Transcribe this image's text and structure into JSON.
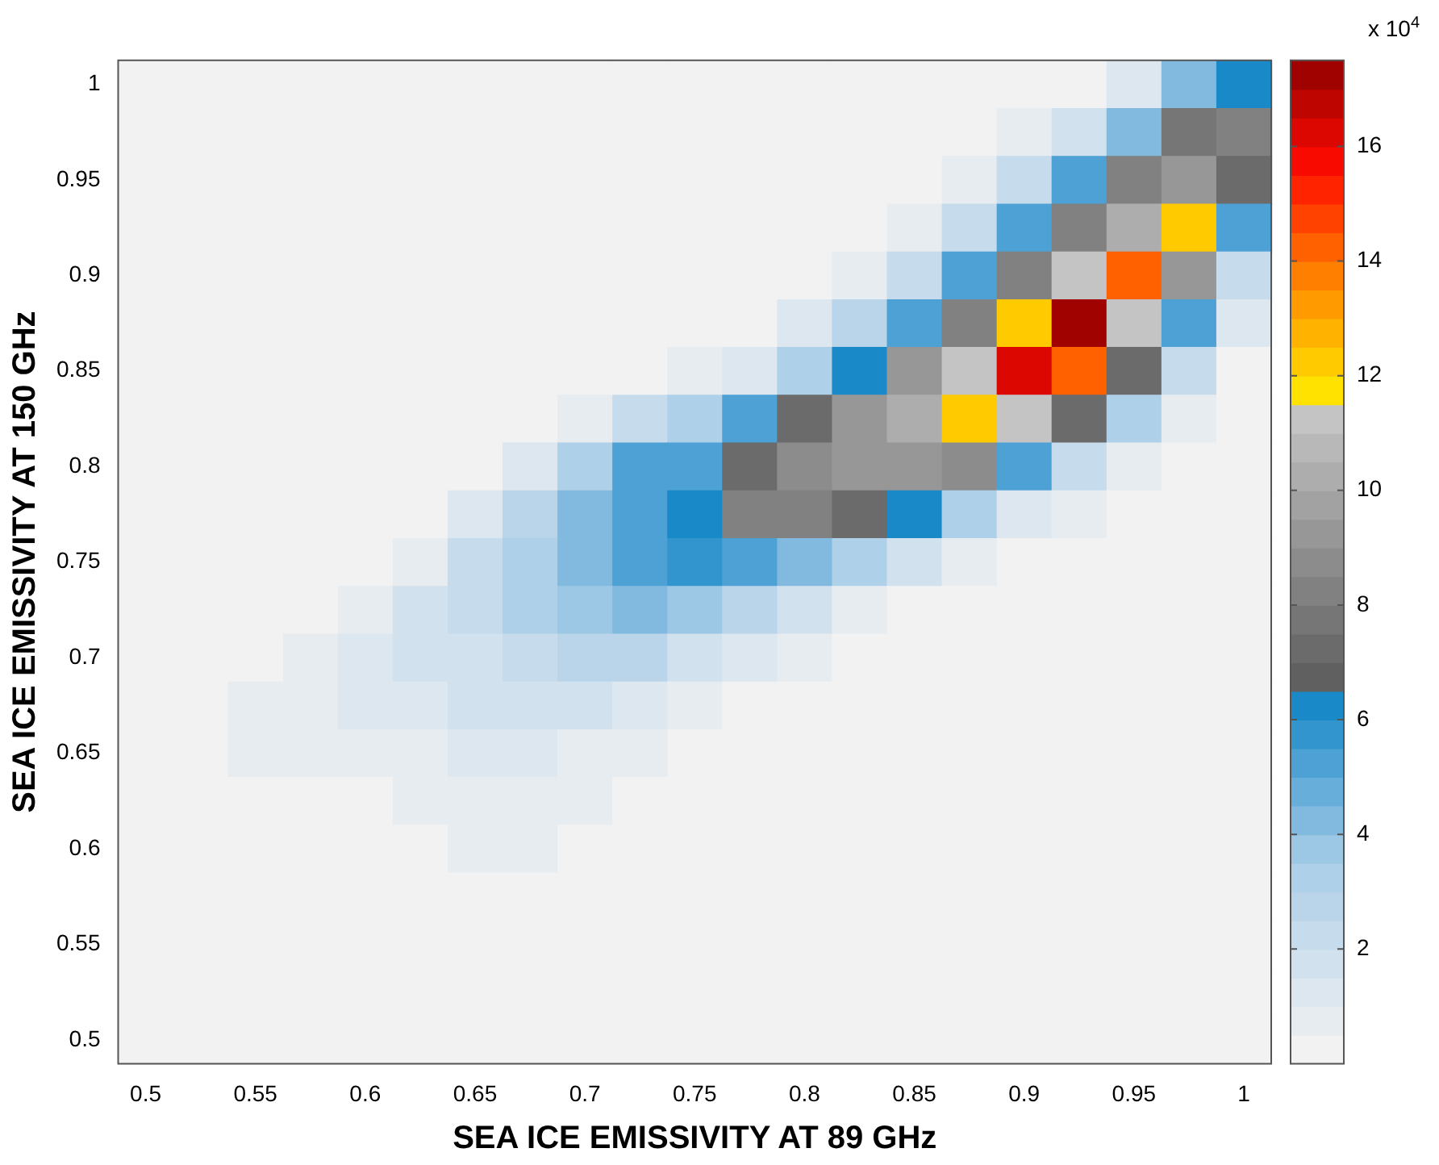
{
  "chart_data": {
    "type": "heatmap",
    "xlabel": "SEA ICE EMISSIVITY AT 89 GHz",
    "ylabel": "SEA ICE EMISSIVITY AT 150 GHz",
    "clabel": "x 10$^{4}$",
    "clim": [
      0,
      17.5
    ],
    "cticks": [
      2,
      4,
      6,
      8,
      10,
      12,
      14,
      16
    ],
    "categories": [
      "0.5",
      null,
      "0.55",
      null,
      "0.6",
      null,
      "0.65",
      null,
      "0.7",
      null,
      "0.75",
      null,
      "0.8",
      null,
      "0.85",
      null,
      "0.9",
      null,
      "0.95",
      null,
      "1"
    ],
    "y_categories": [
      "1",
      null,
      "0.95",
      null,
      "0.9",
      null,
      "0.85",
      null,
      "0.8",
      null,
      "0.75",
      null,
      "0.7",
      null,
      "0.65",
      null,
      "0.6",
      null,
      "0.55",
      null,
      "0.5"
    ],
    "cells": [
      [
        0,
        0,
        0,
        0,
        0,
        0,
        0,
        0,
        0,
        0,
        0,
        0,
        0,
        0,
        0,
        0,
        0,
        0,
        1,
        4,
        6
      ],
      [
        0,
        0,
        0,
        0,
        0,
        0,
        0,
        0,
        0,
        0,
        0,
        0,
        0,
        0,
        0,
        0,
        0.5,
        1.5,
        4,
        7.5,
        8
      ],
      [
        0,
        0,
        0,
        0,
        0,
        0,
        0,
        0,
        0,
        0,
        0,
        0,
        0,
        0,
        0,
        0.5,
        2,
        5,
        8,
        9,
        7
      ],
      [
        0,
        0,
        0,
        0,
        0,
        0,
        0,
        0,
        0,
        0,
        0,
        0,
        0,
        0,
        0.5,
        2,
        5,
        8,
        10,
        12,
        5
      ],
      [
        0,
        0,
        0,
        0,
        0,
        0,
        0,
        0,
        0,
        0,
        0,
        0,
        0,
        0.5,
        2,
        5,
        8,
        11,
        14,
        9,
        2
      ],
      [
        0,
        0,
        0,
        0,
        0,
        0,
        0,
        0,
        0,
        0,
        0,
        0,
        1,
        2.5,
        5,
        8,
        12,
        17,
        11,
        5,
        1
      ],
      [
        0,
        0,
        0,
        0,
        0,
        0,
        0,
        0,
        0,
        0,
        0.5,
        1,
        3,
        6,
        9,
        11,
        16,
        14,
        7,
        2,
        0
      ],
      [
        0,
        0,
        0,
        0,
        0,
        0,
        0,
        0,
        0.5,
        2,
        3,
        5,
        7,
        9,
        10,
        12,
        11,
        7,
        3,
        0.5,
        0
      ],
      [
        0,
        0,
        0,
        0,
        0,
        0,
        0,
        1,
        3,
        5,
        5,
        7,
        8.5,
        9,
        9,
        8.5,
        5,
        2,
        0.5,
        0,
        0
      ],
      [
        0,
        0,
        0,
        0,
        0,
        0,
        1,
        2.5,
        4,
        5,
        6,
        8,
        8,
        7,
        6,
        3,
        1,
        0.5,
        0,
        0,
        0
      ],
      [
        0,
        0,
        0,
        0,
        0,
        0.5,
        2,
        3,
        4,
        5,
        5.5,
        5,
        4,
        3,
        1.5,
        0.5,
        0,
        0,
        0,
        0,
        0
      ],
      [
        0,
        0,
        0,
        0,
        0.5,
        1.5,
        2,
        3,
        3.5,
        4,
        3.5,
        2.5,
        1.5,
        0.5,
        0,
        0,
        0,
        0,
        0,
        0,
        0
      ],
      [
        0,
        0,
        0,
        0.5,
        1,
        1.5,
        1.5,
        2,
        2.5,
        2.5,
        1.5,
        1,
        0.5,
        0,
        0,
        0,
        0,
        0,
        0,
        0,
        0
      ],
      [
        0,
        0,
        0.5,
        0.8,
        1,
        1,
        1.5,
        1.5,
        1.5,
        1,
        0.5,
        0.3,
        0,
        0,
        0,
        0,
        0,
        0,
        0,
        0,
        0
      ],
      [
        0,
        0,
        0.5,
        0.6,
        0.6,
        0.8,
        1,
        1,
        0.8,
        0.5,
        0.3,
        0,
        0,
        0,
        0,
        0,
        0,
        0,
        0,
        0,
        0
      ],
      [
        0,
        0,
        0,
        0,
        0.3,
        0.5,
        0.7,
        0.8,
        0.5,
        0.3,
        0,
        0,
        0,
        0,
        0,
        0,
        0,
        0,
        0,
        0,
        0
      ],
      [
        0,
        0,
        0,
        0,
        0,
        0,
        0.5,
        0.5,
        0.3,
        0,
        0,
        0,
        0,
        0,
        0,
        0,
        0,
        0,
        0,
        0,
        0
      ],
      [
        0,
        0,
        0,
        0,
        0,
        0,
        0,
        0.2,
        0,
        0,
        0,
        0,
        0,
        0,
        0,
        0,
        0,
        0,
        0,
        0,
        0
      ],
      [
        0,
        0,
        0,
        0,
        0,
        0,
        0,
        0,
        0,
        0,
        0,
        0,
        0,
        0,
        0,
        0,
        0,
        0,
        0,
        0,
        0
      ],
      [
        0,
        0,
        0,
        0,
        0,
        0,
        0,
        0,
        0,
        0,
        0,
        0,
        0,
        0,
        0,
        0,
        0,
        0,
        0,
        0,
        0
      ],
      [
        0,
        0,
        0,
        0,
        0,
        0,
        0,
        0,
        0,
        0,
        0,
        0,
        0,
        0,
        0,
        0,
        0,
        0,
        0,
        0,
        0
      ]
    ]
  }
}
